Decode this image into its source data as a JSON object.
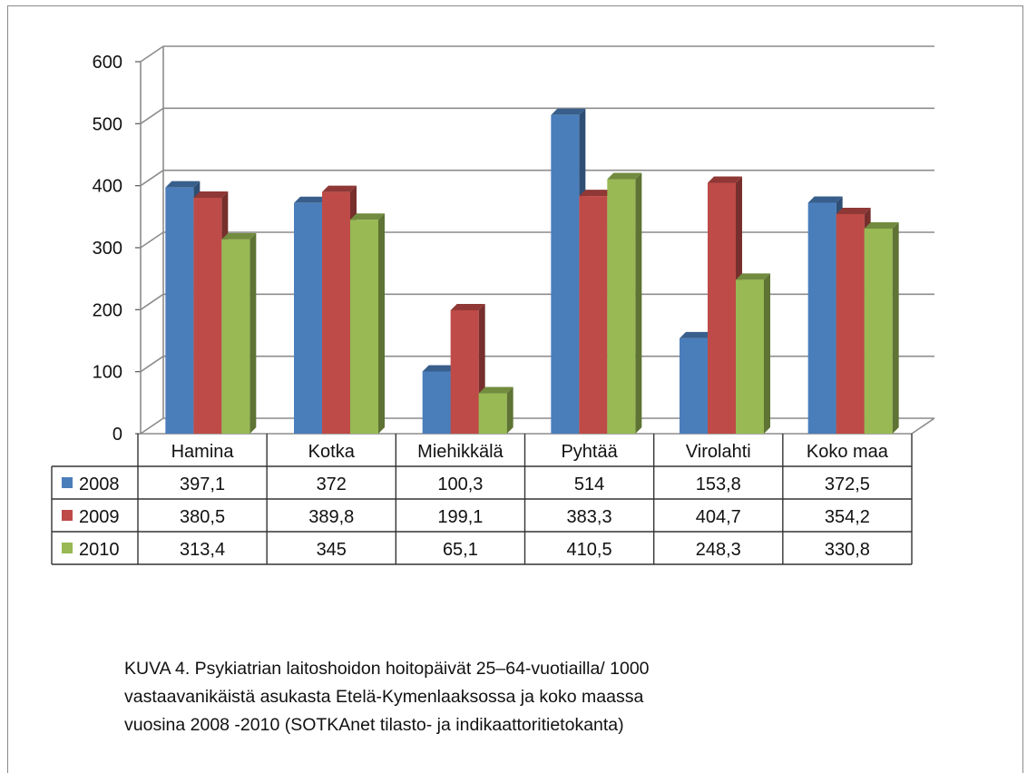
{
  "chart_data": {
    "type": "bar",
    "categories": [
      "Hamina",
      "Kotka",
      "Miehikkälä",
      "Pyhtää",
      "Virolahti",
      "Koko maa"
    ],
    "series": [
      {
        "name": "2008",
        "values": [
          397.1,
          372,
          100.3,
          514,
          153.8,
          372.5
        ],
        "color": "#4a7ebb",
        "value_labels": [
          "397,1",
          "372",
          "100,3",
          "514",
          "153,8",
          "372,5"
        ]
      },
      {
        "name": "2009",
        "values": [
          380.5,
          389.8,
          199.1,
          383.3,
          404.7,
          354.2
        ],
        "color": "#be4b48",
        "value_labels": [
          "380,5",
          "389,8",
          "199,1",
          "383,3",
          "404,7",
          "354,2"
        ]
      },
      {
        "name": "2010",
        "values": [
          313.4,
          345,
          65.1,
          410.5,
          248.3,
          330.8
        ],
        "color": "#98b954",
        "value_labels": [
          "313,4",
          "345",
          "65,1",
          "410,5",
          "248,3",
          "330,8"
        ]
      }
    ],
    "y_ticks": [
      "0",
      "100",
      "200",
      "300",
      "400",
      "500",
      "600"
    ],
    "ylim": [
      0,
      600
    ],
    "grid": true,
    "data_table": true,
    "style": "3d-clustered-column"
  },
  "caption_lines": [
    "KUVA 4. Psykiatrian laitoshoidon hoitopäivät 25–64-vuotiailla/ 1000",
    "vastaavanikäistä asukasta Etelä-Kymenlaaksossa ja koko maassa",
    "vuosina 2008 -2010 (SOTKAnet tilasto- ja indikaattoritietokanta)"
  ]
}
